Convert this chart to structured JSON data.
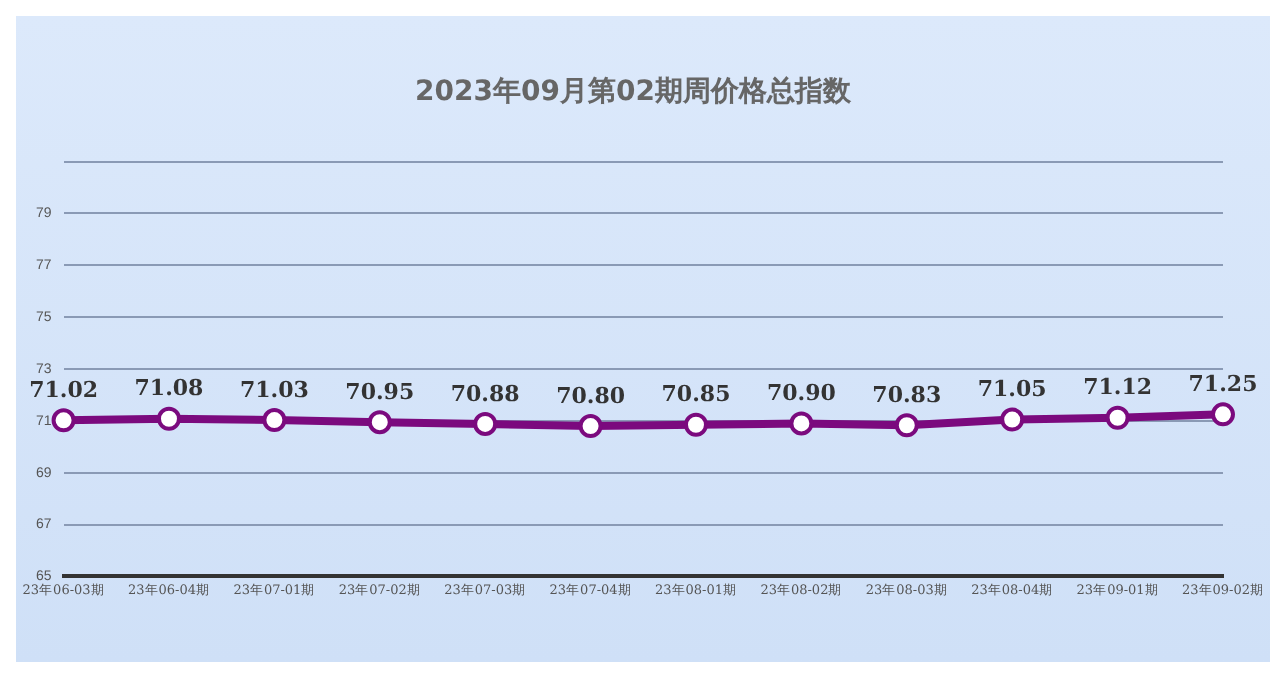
{
  "chart_data": {
    "type": "line",
    "title": "2023年09月第02期周价格总指数",
    "categories": [
      "23年06-03期",
      "23年06-04期",
      "23年07-01期",
      "23年07-02期",
      "23年07-03期",
      "23年07-04期",
      "23年08-01期",
      "23年08-02期",
      "23年08-03期",
      "23年08-04期",
      "23年09-01期",
      "23年09-02期"
    ],
    "series": [
      {
        "color": "#7b0a7e",
        "values": [
          71.02,
          71.08,
          71.03,
          70.95,
          70.88,
          70.8,
          70.85,
          70.9,
          70.83,
          71.05,
          71.12,
          71.25
        ],
        "value_labels": [
          "71.02",
          "71.08",
          "71.03",
          "70.95",
          "70.88",
          "70.80",
          "70.85",
          "70.90",
          "70.83",
          "71.05",
          "71.12",
          "71.25"
        ]
      }
    ],
    "ylim": [
      65,
      81
    ],
    "yticks": [
      65,
      67,
      69,
      71,
      73,
      75,
      77,
      79,
      {
        "value": 81,
        "label": null
      }
    ],
    "grid": "y",
    "marker": "circle",
    "line_style": "solid",
    "legend": false
  }
}
